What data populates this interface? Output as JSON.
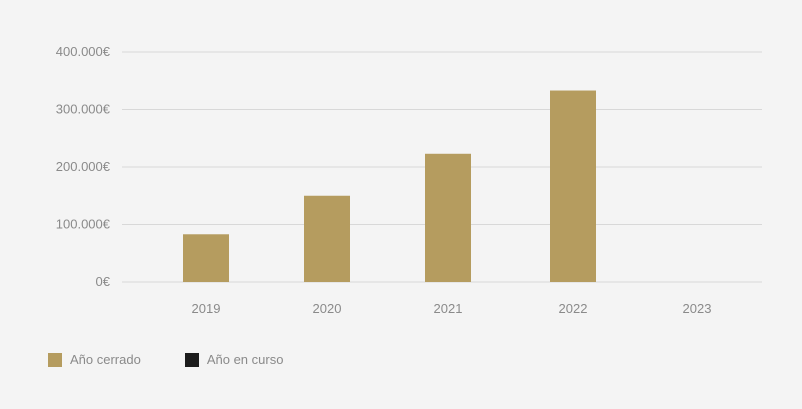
{
  "chart_data": {
    "type": "bar",
    "categories": [
      "2019",
      "2020",
      "2021",
      "2022",
      "2023"
    ],
    "series": [
      {
        "name": "Año cerrado",
        "color": "#b59c5f",
        "values": [
          83000,
          150000,
          223000,
          333000,
          0
        ]
      },
      {
        "name": "Año en curso",
        "color": "#1c1c1c",
        "values": [
          0,
          0,
          0,
          0,
          0
        ]
      }
    ],
    "yticks": [
      "0€",
      "100.000€",
      "200.000€",
      "300.000€",
      "400.000€"
    ],
    "ylim": [
      0,
      400000
    ],
    "grid": true,
    "legend": "bottom-left"
  }
}
